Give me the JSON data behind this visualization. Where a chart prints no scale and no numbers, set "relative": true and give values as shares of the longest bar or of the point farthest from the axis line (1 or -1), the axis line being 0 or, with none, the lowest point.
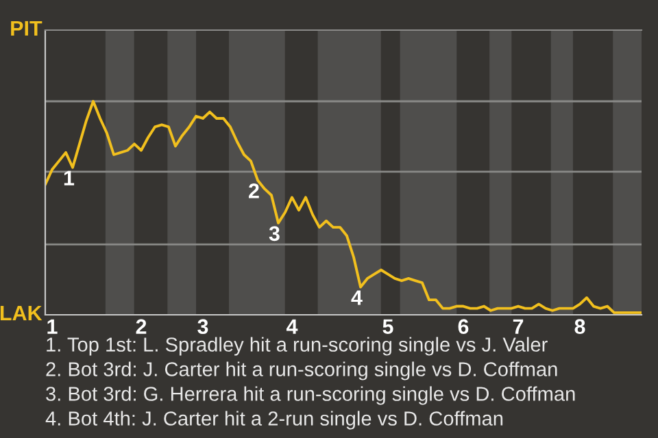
{
  "chart_data": {
    "type": "line",
    "categories": [
      null,
      "1",
      null,
      null,
      null,
      null,
      null,
      null,
      null,
      null,
      null,
      null,
      null,
      null,
      "2",
      null,
      null,
      null,
      null,
      null,
      null,
      null,
      null,
      "3",
      null,
      null,
      null,
      null,
      null,
      null,
      null,
      null,
      null,
      null,
      null,
      null,
      "4",
      null,
      null,
      null,
      null,
      null,
      null,
      null,
      null,
      null,
      null,
      null,
      null,
      null,
      "5",
      null,
      null,
      null,
      null,
      null,
      null,
      null,
      null,
      null,
      null,
      "6",
      null,
      null,
      null,
      null,
      null,
      null,
      null,
      "7",
      null,
      null,
      null,
      null,
      null,
      null,
      null,
      null,
      "8",
      null,
      null,
      null,
      null,
      null,
      null,
      null,
      null,
      null
    ],
    "relative": true,
    "series": [
      {
        "color": "#f2c01e",
        "values": [
          0.61,
          0.68,
          0.72,
          0.76,
          0.69,
          0.8,
          0.91,
          1,
          0.92,
          0.85,
          0.75,
          0.76,
          0.77,
          0.8,
          0.77,
          0.83,
          0.88,
          0.89,
          0.88,
          0.79,
          0.84,
          0.88,
          0.93,
          0.92,
          0.95,
          0.92,
          0.92,
          0.88,
          0.81,
          0.75,
          0.72,
          0.63,
          0.59,
          0.56,
          0.43,
          0.48,
          0.55,
          0.49,
          0.55,
          0.47,
          0.41,
          0.44,
          0.41,
          0.41,
          0.37,
          0.27,
          0.13,
          0.17,
          0.19,
          0.21,
          0.19,
          0.17,
          0.16,
          0.17,
          0.16,
          0.15,
          0.07,
          0.07,
          0.03,
          0.03,
          0.04,
          0.04,
          0.03,
          0.03,
          0.04,
          0.02,
          0.03,
          0.03,
          0.03,
          0.04,
          0.03,
          0.03,
          0.05,
          0.03,
          0.02,
          0.03,
          0.03,
          0.03,
          0.05,
          0.08,
          0.04,
          0.03,
          0.04,
          0.01,
          0.01,
          0.01,
          0.01,
          0.01
        ]
      }
    ],
    "ref_lines": [
      {
        "axis": "y",
        "value": 0.33,
        "color": "#8a8a88"
      },
      {
        "axis": "y",
        "value": 0.67,
        "color": "#8a8a88"
      },
      {
        "axis": "y",
        "value": 1,
        "color": "#8a8a88"
      }
    ],
    "annotations": [
      {
        "text": "1",
        "y": 0.69
      },
      {
        "text": "2",
        "y": 0.63
      },
      {
        "text": "3",
        "y": 0.43
      },
      {
        "text": "4",
        "y": 0.13
      },
      "PIT",
      "LAK",
      "1. Top 1st: L. Spradley hit a run-scoring single vs J. Valer",
      "2. Bot 3rd: J. Carter hit a run-scoring single vs D. Coffman",
      "3. Bot 3rd: G. Herrera hit a run-scoring single vs D. Coffman",
      "4. Bot 4th: J. Carter hit a 2-run single vs D. Coffman"
    ]
  }
}
